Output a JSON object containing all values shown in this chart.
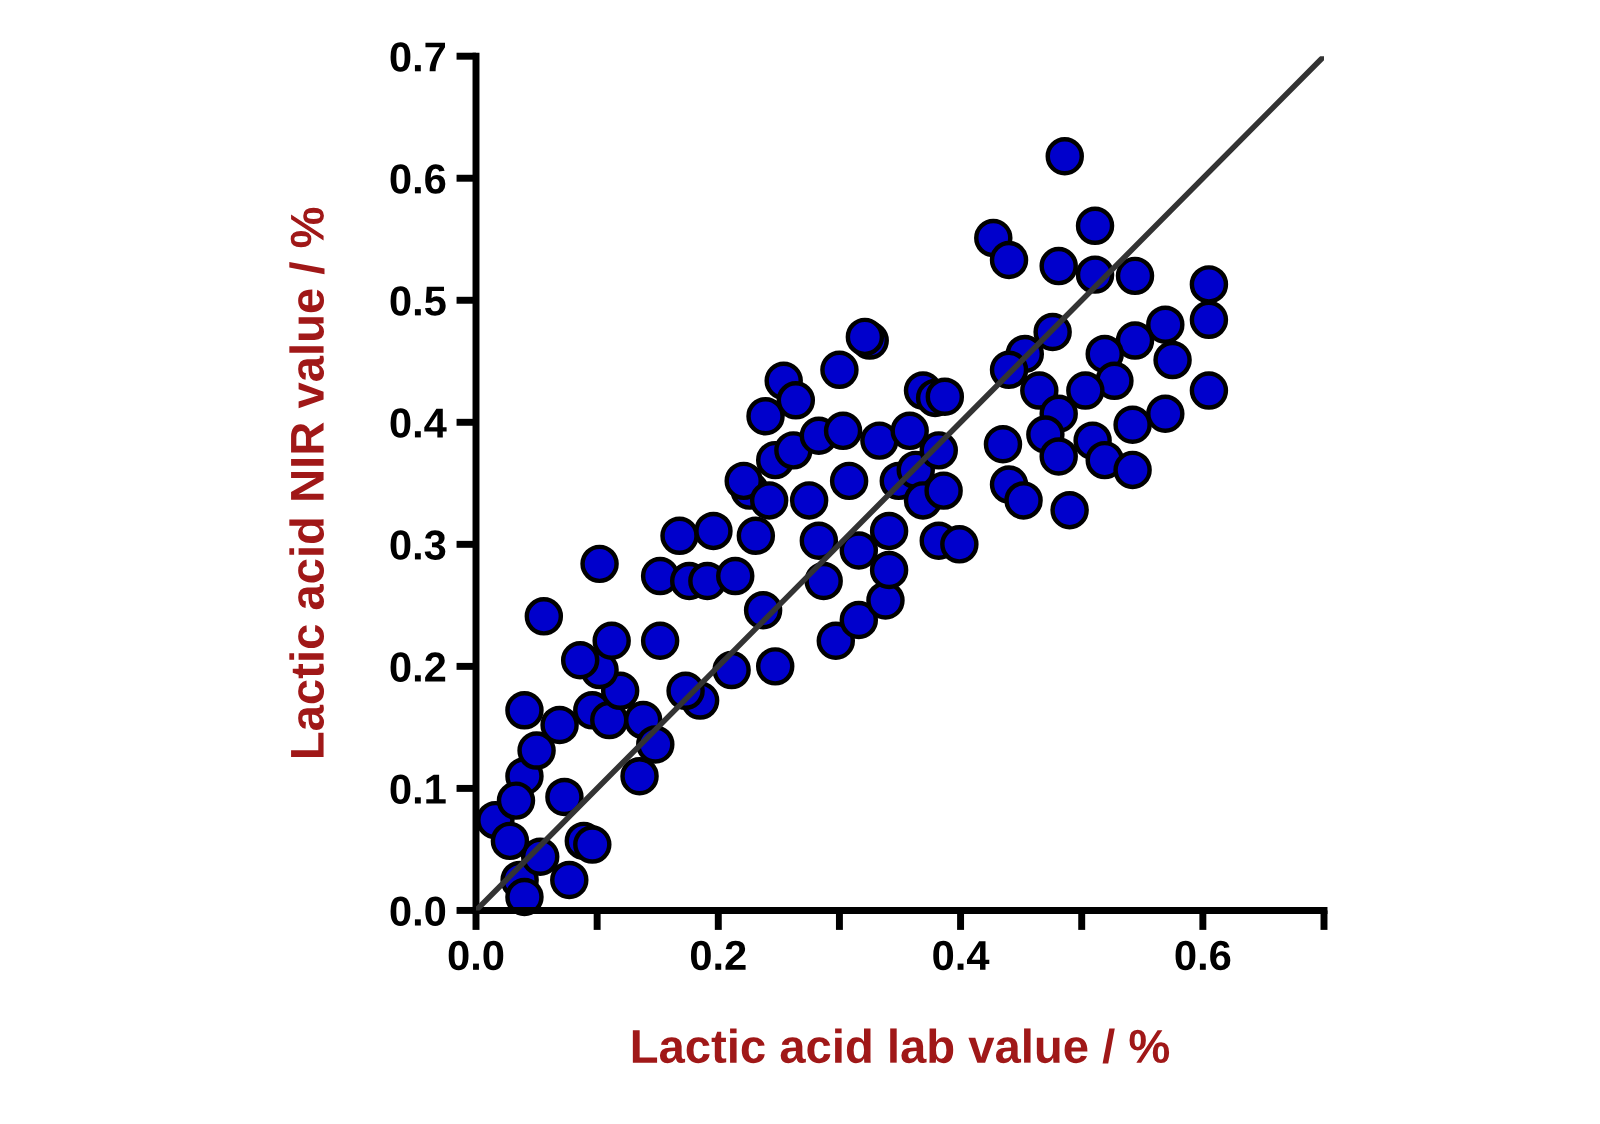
{
  "chart_data": {
    "type": "scatter",
    "xlabel": "Lactic acid lab value / %",
    "ylabel": "Lactic acid NIR value / %",
    "xlim": [
      0,
      0.7
    ],
    "ylim": [
      0,
      0.7
    ],
    "xticks": [
      {
        "value": 0,
        "label": "0.0"
      },
      {
        "value": 0.1,
        "label": null
      },
      {
        "value": 0.2,
        "label": "0.2"
      },
      {
        "value": 0.3,
        "label": null
      },
      {
        "value": 0.4,
        "label": "0.4"
      },
      {
        "value": 0.5,
        "label": null
      },
      {
        "value": 0.6,
        "label": "0.6"
      },
      {
        "value": 0.7,
        "label": null
      }
    ],
    "yticks": [
      {
        "value": 0,
        "label": "0.0"
      },
      {
        "value": 0.1,
        "label": "0.1"
      },
      {
        "value": 0.2,
        "label": "0.2"
      },
      {
        "value": 0.3,
        "label": "0.3"
      },
      {
        "value": 0.4,
        "label": "0.4"
      },
      {
        "value": 0.5,
        "label": "0.5"
      },
      {
        "value": 0.6,
        "label": "0.6"
      },
      {
        "value": 0.7,
        "label": "0.7"
      }
    ],
    "grid": false,
    "legend": false,
    "marker": "circle",
    "series": [
      {
        "color": "#0000cc",
        "x": [
          0.04,
          0.056,
          0.102,
          0.04,
          0.05,
          0.069,
          0.096,
          0.11,
          0.119,
          0.102,
          0.112,
          0.086,
          0.073,
          0.089,
          0.096,
          0.036,
          0.04,
          0.053,
          0.016,
          0.028,
          0.077,
          0.033,
          0.152,
          0.138,
          0.135,
          0.148,
          0.152,
          0.168,
          0.176,
          0.185,
          0.173,
          0.211,
          0.191,
          0.196,
          0.231,
          0.214,
          0.247,
          0.237,
          0.226,
          0.221,
          0.247,
          0.239,
          0.242,
          0.254,
          0.264,
          0.262,
          0.275,
          0.283,
          0.287,
          0.283,
          0.3,
          0.303,
          0.308,
          0.297,
          0.316,
          0.325,
          0.333,
          0.341,
          0.338,
          0.349,
          0.358,
          0.363,
          0.369,
          0.382,
          0.382,
          0.399,
          0.379,
          0.369,
          0.386,
          0.341,
          0.316,
          0.486,
          0.511,
          0.427,
          0.44,
          0.481,
          0.511,
          0.544,
          0.605,
          0.605,
          0.605,
          0.321,
          0.476,
          0.453,
          0.44,
          0.569,
          0.544,
          0.575,
          0.519,
          0.527,
          0.465,
          0.503,
          0.569,
          0.542,
          0.481,
          0.435,
          0.509,
          0.47,
          0.519,
          0.481,
          0.44,
          0.452,
          0.49,
          0.387,
          0.542
        ],
        "values": [
          0.164,
          0.241,
          0.284,
          0.11,
          0.131,
          0.152,
          0.164,
          0.156,
          0.18,
          0.197,
          0.221,
          0.205,
          0.093,
          0.057,
          0.054,
          0.025,
          0.011,
          0.044,
          0.074,
          0.057,
          0.025,
          0.09,
          0.221,
          0.156,
          0.11,
          0.136,
          0.274,
          0.307,
          0.27,
          0.172,
          0.18,
          0.197,
          0.27,
          0.311,
          0.307,
          0.274,
          0.2,
          0.246,
          0.344,
          0.352,
          0.369,
          0.405,
          0.336,
          0.434,
          0.418,
          0.377,
          0.336,
          0.303,
          0.27,
          0.389,
          0.443,
          0.393,
          0.352,
          0.221,
          0.238,
          0.467,
          0.385,
          0.311,
          0.254,
          0.352,
          0.393,
          0.361,
          0.426,
          0.377,
          0.303,
          0.3,
          0.42,
          0.336,
          0.344,
          0.279,
          0.295,
          0.618,
          0.561,
          0.551,
          0.533,
          0.528,
          0.521,
          0.52,
          0.513,
          0.484,
          0.426,
          0.47,
          0.474,
          0.456,
          0.443,
          0.48,
          0.467,
          0.451,
          0.456,
          0.434,
          0.426,
          0.426,
          0.407,
          0.398,
          0.407,
          0.382,
          0.385,
          0.39,
          0.369,
          0.372,
          0.349,
          0.336,
          0.328,
          0.421,
          0.361
        ]
      },
      {
        "type": "line",
        "color": "#333333",
        "x": [
          0,
          0.7
        ],
        "values": [
          0,
          0.7
        ],
        "marker": "none",
        "line_style": "solid"
      }
    ]
  }
}
